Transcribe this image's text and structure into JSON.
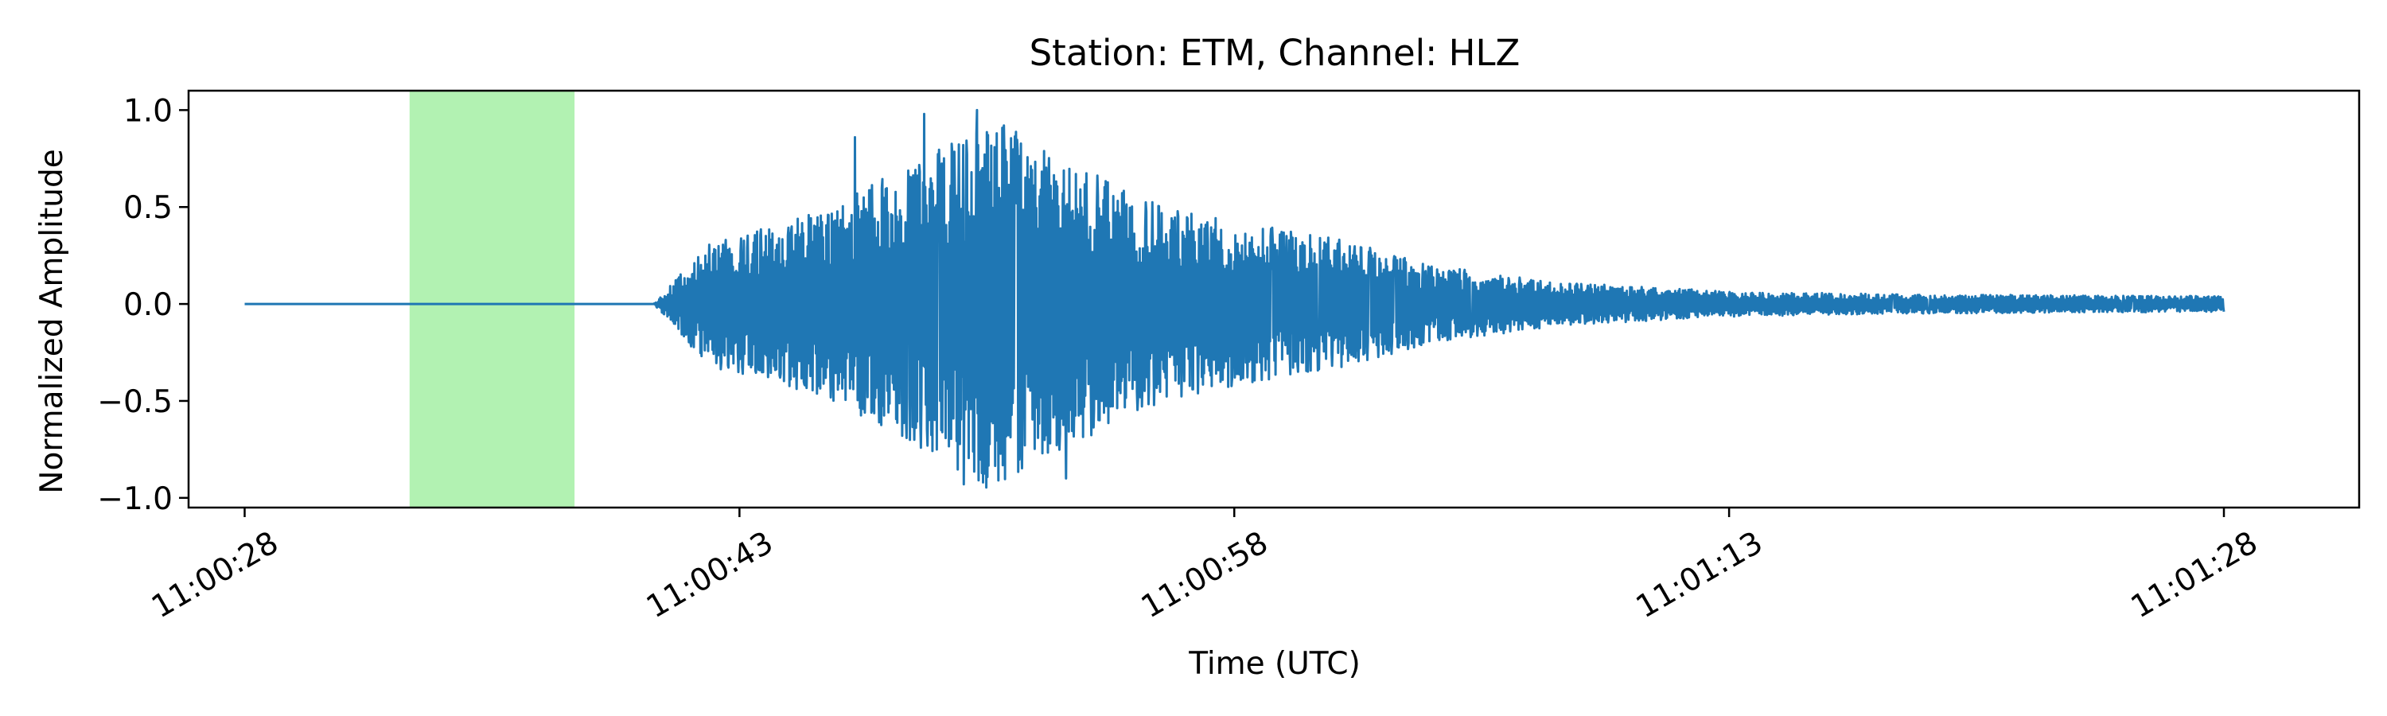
{
  "chart_data": {
    "type": "line",
    "title": "Station: ETM, Channel: HLZ",
    "xlabel": "Time (UTC)",
    "ylabel": "Normalized Amplitude",
    "xlim_seconds": [
      -1.7,
      64.1
    ],
    "ylim": [
      -1.05,
      1.1
    ],
    "x_ticks": [
      {
        "t": 0,
        "label": "11:00:28"
      },
      {
        "t": 15,
        "label": "11:00:43"
      },
      {
        "t": 30,
        "label": "11:00:58"
      },
      {
        "t": 45,
        "label": "11:01:13"
      },
      {
        "t": 60,
        "label": "11:01:28"
      }
    ],
    "y_ticks": [
      {
        "v": 1.0,
        "label": "1.0"
      },
      {
        "v": 0.5,
        "label": "0.5"
      },
      {
        "v": 0.0,
        "label": "0.0"
      },
      {
        "v": -0.5,
        "label": "−0.5"
      },
      {
        "v": -1.0,
        "label": "−1.0"
      }
    ],
    "highlight_window": {
      "t_start": 5.0,
      "t_end": 10.0,
      "color": "#b2f2b2"
    },
    "series": [
      {
        "color": "#1f77b4",
        "t_start": 0,
        "t_end": 60,
        "onset_t": 12.4,
        "envelope": [
          {
            "t": 12.4,
            "amp": 0.0
          },
          {
            "t": 13.2,
            "amp": 0.15
          },
          {
            "t": 14.0,
            "amp": 0.32
          },
          {
            "t": 17.0,
            "amp": 0.45
          },
          {
            "t": 19.0,
            "amp": 0.62
          },
          {
            "t": 21.0,
            "amp": 0.8
          },
          {
            "t": 22.5,
            "amp": 0.98
          },
          {
            "t": 25.0,
            "amp": 0.75
          },
          {
            "t": 27.0,
            "amp": 0.55
          },
          {
            "t": 30.0,
            "amp": 0.42
          },
          {
            "t": 33.0,
            "amp": 0.35
          },
          {
            "t": 36.0,
            "amp": 0.2
          },
          {
            "t": 40.0,
            "amp": 0.11
          },
          {
            "t": 45.0,
            "amp": 0.065
          },
          {
            "t": 50.0,
            "amp": 0.05
          },
          {
            "t": 55.0,
            "amp": 0.045
          },
          {
            "t": 60.0,
            "amp": 0.04
          }
        ],
        "peaks": [
          {
            "t": 18.5,
            "v": 0.86
          },
          {
            "t": 20.6,
            "v": 0.98
          },
          {
            "t": 22.2,
            "v": 1.0
          },
          {
            "t": 22.8,
            "v": 0.88
          },
          {
            "t": 21.8,
            "v": -0.93
          },
          {
            "t": 24.9,
            "v": -0.9
          },
          {
            "t": 20.3,
            "v": -0.7
          }
        ]
      }
    ]
  }
}
